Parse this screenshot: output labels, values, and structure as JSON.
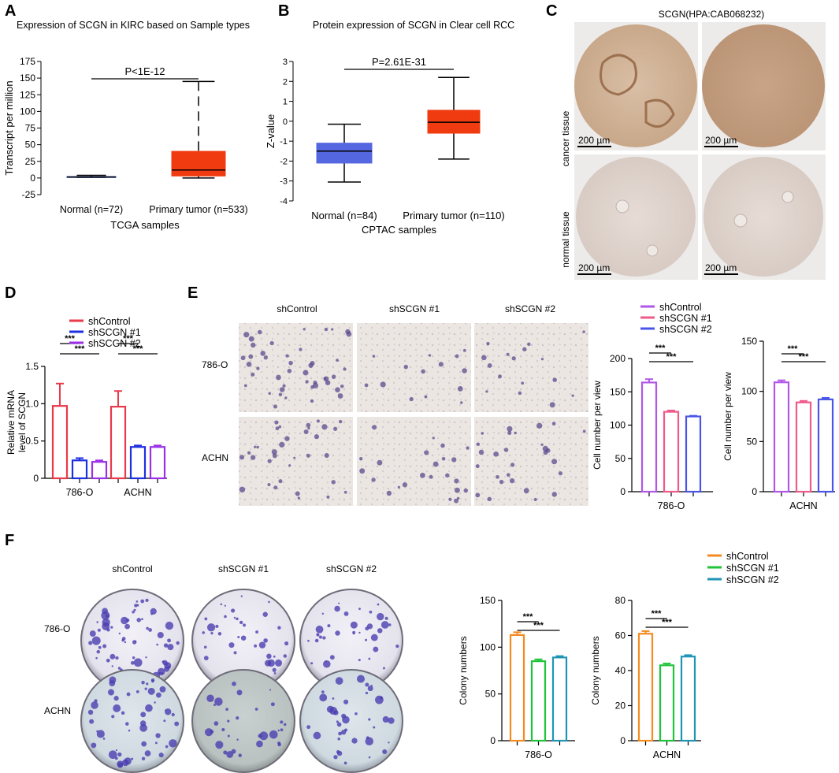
{
  "panels": [
    {
      "id": "A",
      "label": "A"
    },
    {
      "id": "B",
      "label": "B"
    },
    {
      "id": "C",
      "label": "C"
    },
    {
      "id": "D",
      "label": "D"
    },
    {
      "id": "E",
      "label": "E"
    },
    {
      "id": "F",
      "label": "F"
    }
  ],
  "chart_data": [
    {
      "panel": "A",
      "type": "box",
      "title": "Expression of SCGN in KIRC based on Sample types",
      "xlabel": "TCGA samples",
      "ylabel": "Transcript per million",
      "ylim": [
        -25,
        175
      ],
      "yticks": [
        -25,
        0,
        25,
        50,
        75,
        100,
        125,
        150,
        175
      ],
      "categories": [
        "Normal (n=72)",
        "Primary tumor (n=533)"
      ],
      "boxes": [
        {
          "name": "Normal (n=72)",
          "whisker_low": 1,
          "q1": 1,
          "median": 1.5,
          "q3": 2,
          "whisker_high": 4,
          "color": "#1a3fbf"
        },
        {
          "name": "Primary tumor (n=533)",
          "whisker_low": 0,
          "q1": 3,
          "median": 12,
          "q3": 40,
          "whisker_high": 145,
          "color": "#f03a10"
        }
      ],
      "annotation": "P<1E-12"
    },
    {
      "panel": "B",
      "type": "box",
      "title": "Protein expression of SCGN in Clear cell RCC",
      "xlabel": "CPTAC samples",
      "ylabel": "Z-value",
      "ylim": [
        -4,
        3
      ],
      "yticks": [
        -4,
        -3,
        -2,
        -1,
        0,
        1,
        2,
        3
      ],
      "categories": [
        "Normal (n=84)",
        "Primary tumor (n=110)"
      ],
      "boxes": [
        {
          "name": "Normal (n=84)",
          "whisker_low": -3.05,
          "q1": -2.1,
          "median": -1.5,
          "q3": -1.1,
          "whisker_high": -0.15,
          "color": "#5567e0"
        },
        {
          "name": "Primary tumor (n=110)",
          "whisker_low": -1.9,
          "q1": -0.6,
          "median": -0.05,
          "q3": 0.55,
          "whisker_high": 2.2,
          "color": "#f03a10"
        }
      ],
      "annotation": "P=2.61E-31"
    },
    {
      "panel": "D",
      "type": "bar",
      "ylabel_lines": [
        "Relative mRNA",
        "level of SCGN"
      ],
      "ylim": [
        0,
        1.5
      ],
      "yticks": [
        0,
        0.5,
        1.0,
        1.5
      ],
      "ytick_labels": [
        "0",
        "0.5",
        "1.0",
        "1.5"
      ],
      "categories": [
        "786-O",
        "ACHN"
      ],
      "series": [
        {
          "name": "shControl",
          "color": "#e83a4a",
          "values": [
            0.97,
            0.96
          ],
          "errors": [
            0.3,
            0.21
          ]
        },
        {
          "name": "shSCGN #1",
          "color": "#1d2fe0",
          "values": [
            0.24,
            0.42
          ],
          "errors": [
            0.03,
            0.02
          ]
        },
        {
          "name": "shSCGN #2",
          "color": "#9b2fe8",
          "values": [
            0.22,
            0.42
          ],
          "errors": [
            0.02,
            0.02
          ]
        }
      ],
      "significance": [
        "***",
        "***",
        "***",
        "***"
      ]
    },
    {
      "panel": "E1",
      "type": "bar",
      "ylabel": "Cell number per view",
      "ylim": [
        0,
        200
      ],
      "yticks": [
        0,
        50,
        100,
        150,
        200
      ],
      "categories": [
        "786-O"
      ],
      "series": [
        {
          "name": "shControl",
          "color": "#b256e8",
          "values": [
            164
          ],
          "errors": [
            5
          ]
        },
        {
          "name": "shSCGN #1",
          "color": "#ee5a8a",
          "values": [
            120
          ],
          "errors": [
            2
          ]
        },
        {
          "name": "shSCGN #2",
          "color": "#4a55e8",
          "values": [
            113
          ],
          "errors": [
            1
          ]
        }
      ],
      "significance": [
        "***",
        "***"
      ]
    },
    {
      "panel": "E2",
      "type": "bar",
      "ylabel": "Cell number per view",
      "ylim": [
        0,
        150
      ],
      "yticks": [
        0,
        50,
        100,
        150
      ],
      "categories": [
        "ACHN"
      ],
      "series": [
        {
          "name": "shControl",
          "color": "#b256e8",
          "values": [
            109
          ],
          "errors": [
            2
          ]
        },
        {
          "name": "shSCGN #1",
          "color": "#ee5a8a",
          "values": [
            89
          ],
          "errors": [
            1.5
          ]
        },
        {
          "name": "shSCGN #2",
          "color": "#4a55e8",
          "values": [
            92
          ],
          "errors": [
            1.5
          ]
        }
      ],
      "significance": [
        "***",
        "***"
      ]
    },
    {
      "panel": "F1",
      "type": "bar",
      "ylabel": "Colony numbers",
      "ylim": [
        0,
        150
      ],
      "yticks": [
        0,
        50,
        100,
        150
      ],
      "categories": [
        "786-O"
      ],
      "series": [
        {
          "name": "shControl",
          "color": "#f58a1f",
          "values": [
            113
          ],
          "errors": [
            3
          ]
        },
        {
          "name": "shSCGN #1",
          "color": "#1fc43a",
          "values": [
            85
          ],
          "errors": [
            2
          ]
        },
        {
          "name": "shSCGN #2",
          "color": "#1f95b5",
          "values": [
            89
          ],
          "errors": [
            1.5
          ]
        }
      ],
      "significance": [
        "***",
        "***"
      ]
    },
    {
      "panel": "F2",
      "type": "bar",
      "ylabel": "Colony numbers",
      "ylim": [
        0,
        80
      ],
      "yticks": [
        0,
        20,
        40,
        60,
        80
      ],
      "categories": [
        "ACHN"
      ],
      "series": [
        {
          "name": "shControl",
          "color": "#f58a1f",
          "values": [
            61
          ],
          "errors": [
            1.5
          ]
        },
        {
          "name": "shSCGN #1",
          "color": "#1fc43a",
          "values": [
            43
          ],
          "errors": [
            1
          ]
        },
        {
          "name": "shSCGN #2",
          "color": "#1f95b5",
          "values": [
            48
          ],
          "errors": [
            0.8
          ]
        }
      ],
      "significance": [
        "***",
        "***"
      ]
    }
  ],
  "panel_c": {
    "title": "SCGN(HPA:CAB068232)",
    "row_labels": [
      "cancer tissue",
      "normal tissue"
    ],
    "scale_bar": "200 µm"
  },
  "panel_e_images": {
    "col_labels": [
      "shControl",
      "shSCGN #1",
      "shSCGN #2"
    ],
    "row_labels": [
      "786-O",
      "ACHN"
    ]
  },
  "panel_f_images": {
    "col_labels": [
      "shControl",
      "shSCGN #1",
      "shSCGN #2"
    ],
    "row_labels": [
      "786-O",
      "ACHN"
    ]
  }
}
